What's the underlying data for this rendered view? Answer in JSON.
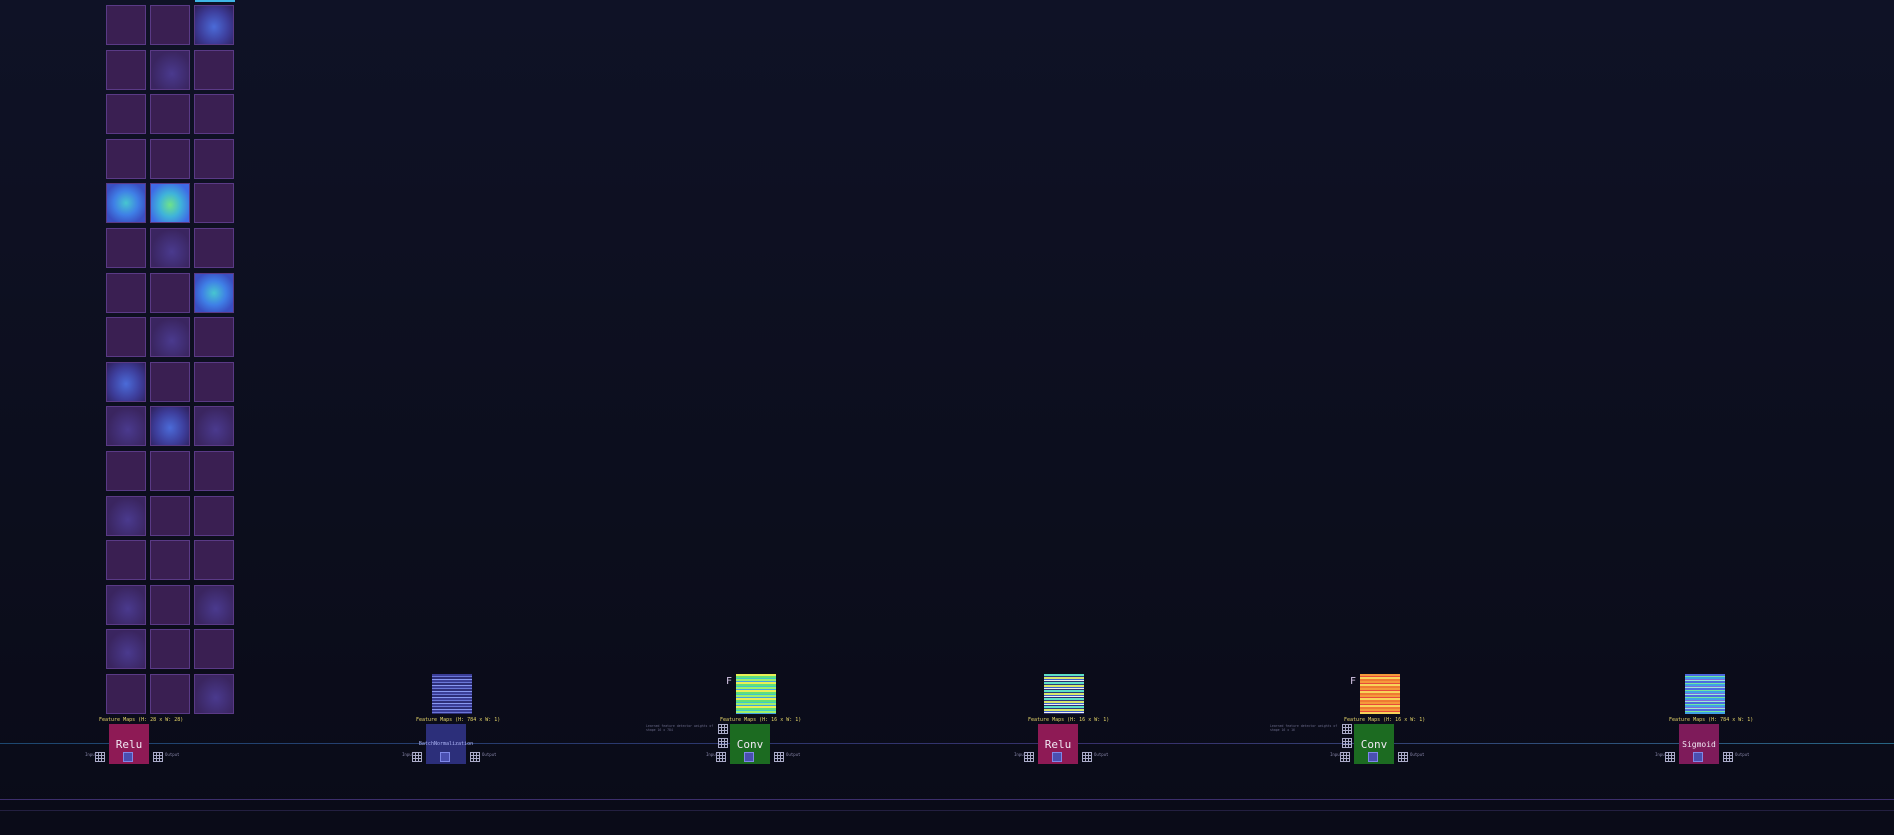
{
  "feature_grid": {
    "rows": 16,
    "cols": 3,
    "caption": "Feature Maps (H: 28 x W: 28)",
    "cells": [
      [
        "lvl0",
        "lvl0",
        "lvl2"
      ],
      [
        "lvl0",
        "lvl1",
        "lvl0"
      ],
      [
        "lvl0",
        "lvl0",
        "lvl0"
      ],
      [
        "lvl0",
        "lvl0",
        "lvl0"
      ],
      [
        "lvl3",
        "lvl4",
        "lvl0"
      ],
      [
        "lvl0",
        "lvl1",
        "lvl0"
      ],
      [
        "lvl0",
        "lvl0",
        "lvl3"
      ],
      [
        "lvl0",
        "lvl1",
        "lvl0"
      ],
      [
        "lvl2",
        "lvl0",
        "lvl0"
      ],
      [
        "lvl1",
        "lvl2",
        "lvl1"
      ],
      [
        "lvl0",
        "lvl0",
        "lvl0"
      ],
      [
        "lvl1",
        "lvl0",
        "lvl0"
      ],
      [
        "lvl0",
        "lvl0",
        "lvl0"
      ],
      [
        "lvl1",
        "lvl0",
        "lvl1"
      ],
      [
        "lvl1",
        "lvl0",
        "lvl0"
      ],
      [
        "lvl0",
        "lvl0",
        "lvl1"
      ]
    ]
  },
  "layers": [
    {
      "name": "relu-1",
      "op_label": "Relu",
      "kind": "relu",
      "caption": "Feature Maps (H: 28 x W: 28)",
      "thumb": "none",
      "show_f": false,
      "desc": ""
    },
    {
      "name": "batchnorm",
      "op_label": "BatchNormalization",
      "kind": "norm",
      "caption": "Feature Maps (H: 784 x W: 1)",
      "thumb": "stripes-blue",
      "show_f": false,
      "desc": ""
    },
    {
      "name": "conv-1",
      "op_label": "Conv",
      "kind": "conv",
      "caption": "Feature Maps (H: 16 x W: 1)",
      "thumb": "stripes-green",
      "show_f": true,
      "desc": "Learned feature detector weights of shape 16 x 784"
    },
    {
      "name": "relu-2",
      "op_label": "Relu",
      "kind": "relu",
      "caption": "Feature Maps (H: 16 x W: 1)",
      "thumb": "stripes-teal",
      "show_f": false,
      "desc": ""
    },
    {
      "name": "conv-2",
      "op_label": "Conv",
      "kind": "conv",
      "caption": "Feature Maps (H: 16 x W: 1)",
      "thumb": "stripes-orange",
      "show_f": true,
      "desc": "Learned feature detector weights of shape 16 x 16"
    },
    {
      "name": "sigmoid",
      "op_label": "Sigmoid",
      "kind": "sigmoid",
      "caption": "Feature Maps (H: 784 x W: 1)",
      "thumb": "stripes-multi",
      "show_f": false,
      "desc": ""
    }
  ],
  "f_badge": "F",
  "tiny": {
    "in": "Input",
    "out": "Output"
  },
  "colors": {
    "background": "#0d0f1e",
    "relu": "#8e1a55",
    "conv": "#1c6b21",
    "norm": "#2c2f7a",
    "sigmoid": "#7e1b5a"
  }
}
